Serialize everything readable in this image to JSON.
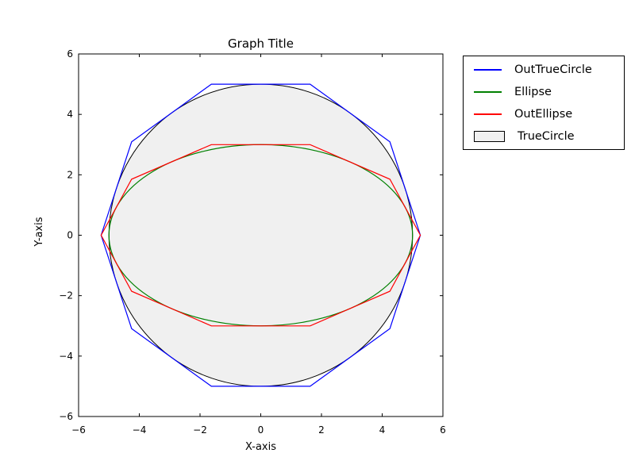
{
  "chart_data": {
    "type": "line",
    "title": "Graph Title",
    "xlabel": "X-axis",
    "ylabel": "Y-axis",
    "xlim": [
      -6,
      6
    ],
    "ylim": [
      -6,
      6
    ],
    "xticks": [
      -6,
      -4,
      -2,
      0,
      2,
      4,
      6
    ],
    "yticks": [
      -6,
      -4,
      -2,
      0,
      2,
      4,
      6
    ],
    "grid": false,
    "background": "#ffffff",
    "frame_color": "#000000",
    "series": [
      {
        "name": "TrueCircle",
        "kind": "circle",
        "center": [
          0,
          0
        ],
        "radius": 5,
        "fill": "#f0f0f0",
        "edge": "#000000"
      },
      {
        "name": "OutTrueCircle",
        "kind": "polygon",
        "color": "#0000ff",
        "vertices": [
          [
            5.257,
            0
          ],
          [
            4.253,
            3.09
          ],
          [
            1.625,
            5
          ],
          [
            -1.625,
            5
          ],
          [
            -4.253,
            3.09
          ],
          [
            -5.257,
            0
          ],
          [
            -4.253,
            -3.09
          ],
          [
            -1.625,
            -5
          ],
          [
            1.625,
            -5
          ],
          [
            4.253,
            -3.09
          ]
        ]
      },
      {
        "name": "Ellipse",
        "kind": "ellipse",
        "center": [
          0,
          0
        ],
        "rx": 5,
        "ry": 3,
        "color": "#008000"
      },
      {
        "name": "OutEllipse",
        "kind": "polygon",
        "color": "#ff0000",
        "vertices": [
          [
            5.257,
            0
          ],
          [
            4.253,
            1.854
          ],
          [
            1.625,
            3
          ],
          [
            -1.625,
            3
          ],
          [
            -4.253,
            1.854
          ],
          [
            -5.257,
            0
          ],
          [
            -4.253,
            -1.854
          ],
          [
            -1.625,
            -3
          ],
          [
            1.625,
            -3
          ],
          [
            4.253,
            -1.854
          ]
        ]
      }
    ],
    "legend": {
      "position": "outside-upper-right",
      "entries": [
        {
          "label": "OutTrueCircle",
          "swatch": "line",
          "color": "#0000ff"
        },
        {
          "label": "Ellipse",
          "swatch": "line",
          "color": "#008000"
        },
        {
          "label": "OutEllipse",
          "swatch": "line",
          "color": "#ff0000"
        },
        {
          "label": "TrueCircle",
          "swatch": "patch",
          "fill": "#f0f0f0",
          "edge": "#000000"
        }
      ]
    }
  }
}
